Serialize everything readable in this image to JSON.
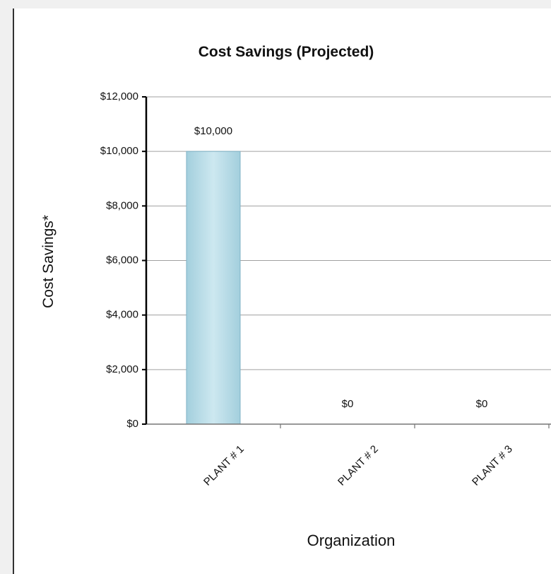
{
  "chart_data": {
    "type": "bar",
    "title": "Cost Savings (Projected)",
    "x_label": "Organization",
    "y_label": "Cost Savings*",
    "categories": [
      "PLANT # 1",
      "PLANT # 2",
      "PLANT # 3"
    ],
    "values": [
      10000,
      0,
      0
    ],
    "value_labels": [
      "$10,000",
      "$0",
      "$0"
    ],
    "color": "#b5dbe6",
    "ylim": [
      0,
      12000
    ],
    "yticks": [
      {
        "value": 0,
        "label": "$0"
      },
      {
        "value": 2000,
        "label": "$2,000"
      },
      {
        "value": 4000,
        "label": "$4,000"
      },
      {
        "value": 6000,
        "label": "$6,000"
      },
      {
        "value": 8000,
        "label": "$8,000"
      },
      {
        "value": 10000,
        "label": "$10,000"
      },
      {
        "value": 12000,
        "label": "$12,000"
      }
    ],
    "grid": true
  }
}
